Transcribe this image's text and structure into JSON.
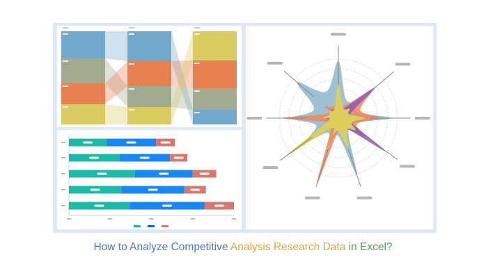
{
  "caption": {
    "part1": "How to Analyze Competitive ",
    "part2": "Analysis Research Data",
    "part3": " in Excel?"
  },
  "colors": {
    "caption_blue": "#4a78d0",
    "caption_orange": "#e9a43a",
    "caption_green": "#4ca64c",
    "teal": "#1dbaa8",
    "blue": "#1788f5",
    "red": "#d8786c",
    "sankey_blue": "#72a8cc",
    "sankey_sage": "#a3aa92",
    "sankey_orange": "#e88152",
    "sankey_yellow": "#d9cb62",
    "radar_blue": "#8eb6cc",
    "radar_orange": "#ec8a5a",
    "radar_purple": "#8e5bb8",
    "radar_yellow": "#dccd5c"
  },
  "chart_data": [
    {
      "type": "sankey",
      "columns": [
        {
          "segments": [
            {
              "color": "sankey_blue",
              "value": 39
            },
            {
              "color": "sankey_sage",
              "value": 36
            },
            {
              "color": "sankey_orange",
              "value": 30
            },
            {
              "color": "sankey_yellow",
              "value": 29
            }
          ]
        },
        {
          "segments": [
            {
              "color": "sankey_blue",
              "value": 43
            },
            {
              "color": "sankey_orange",
              "value": 36
            },
            {
              "color": "sankey_sage",
              "value": 30
            },
            {
              "color": "sankey_yellow",
              "value": 25
            }
          ]
        },
        {
          "segments": [
            {
              "color": "sankey_yellow",
              "value": 42
            },
            {
              "color": "sankey_orange",
              "value": 40
            },
            {
              "color": "sankey_sage",
              "value": 31
            },
            {
              "color": "sankey_blue",
              "value": 21
            }
          ]
        }
      ]
    },
    {
      "type": "bar",
      "orientation": "horizontal-stacked",
      "xlim": [
        0,
        4
      ],
      "xticks": 5,
      "series": [
        {
          "name": "teal",
          "values": [
            0.91,
            1.22,
            1.6,
            1.27,
            1.47
          ]
        },
        {
          "name": "blue",
          "values": [
            1.2,
            1.23,
            1.4,
            1.53,
            1.82
          ]
        },
        {
          "name": "red",
          "values": [
            0.46,
            0.42,
            0.57,
            0.52,
            0.71
          ]
        }
      ]
    },
    {
      "type": "radar",
      "axes": 9,
      "rings": 6,
      "rmax": 1,
      "series": [
        {
          "name": "blue",
          "color": "radar_blue",
          "values": [
            0.97,
            0.55,
            0.9,
            0.45,
            1.02,
            0.5,
            0.7,
            0.8,
            0.92
          ]
        },
        {
          "name": "orange",
          "color": "radar_orange",
          "values": [
            0.35,
            0.75,
            0.7,
            0.55,
            0.3,
            1.2,
            0.3,
            0.95,
            0.3
          ]
        },
        {
          "name": "purple",
          "color": "radar_purple",
          "values": [
            0.2,
            0.82,
            0.3,
            0.98,
            0.3,
            0.2,
            0.5,
            0.2,
            0.2
          ]
        },
        {
          "name": "yellow",
          "color": "radar_yellow",
          "values": [
            0.58,
            0.25,
            0.45,
            0.35,
            0.52,
            0.3,
            1.08,
            0.25,
            0.2
          ]
        }
      ]
    }
  ]
}
